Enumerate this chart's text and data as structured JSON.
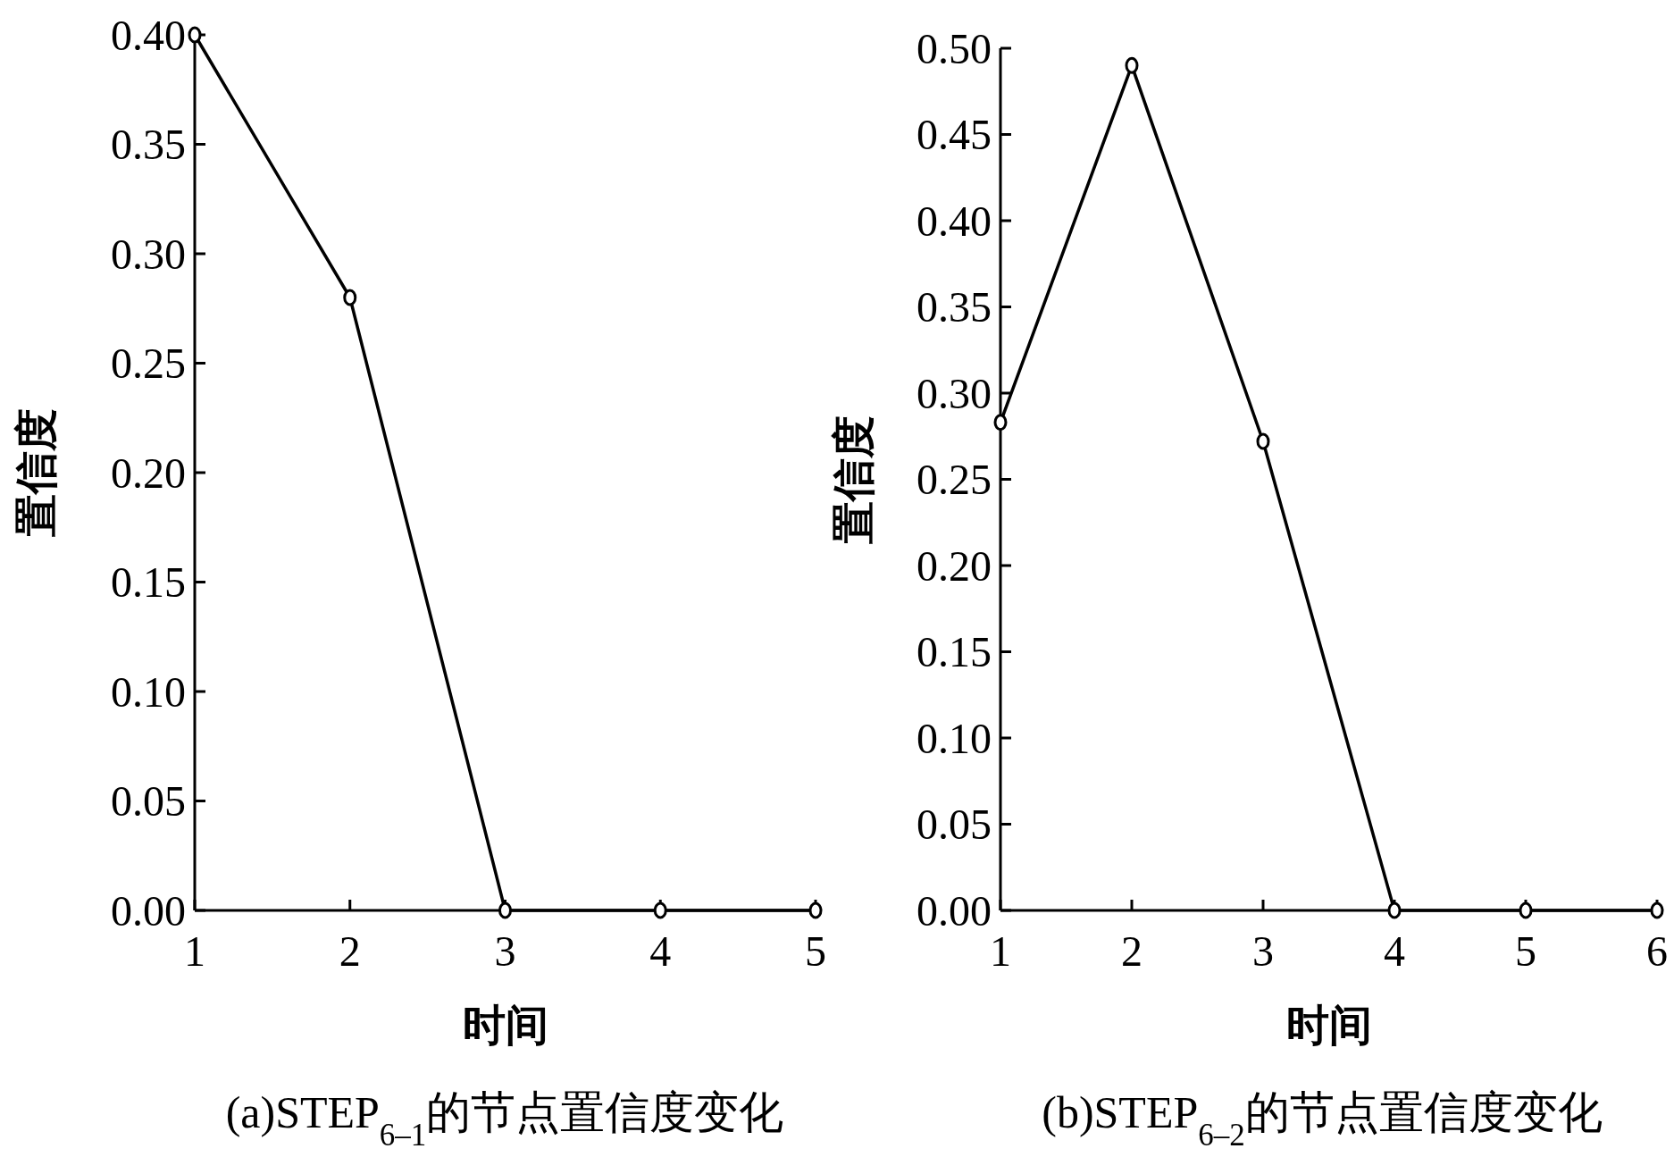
{
  "chart_data": [
    {
      "type": "line",
      "title": "(a)STEP$_{6–1}$的节点置信度变化",
      "xlabel": "时间",
      "ylabel": "置信度",
      "x": [
        1,
        2,
        3,
        4,
        5
      ],
      "series": [
        {
          "color": "#000000",
          "values": [
            0.4,
            0.28,
            0,
            0,
            0
          ]
        }
      ],
      "xlim": [
        1,
        5
      ],
      "xticks": [
        1,
        2,
        3,
        4,
        5
      ],
      "ylim": [
        0,
        0.4
      ],
      "yticks": [
        {
          "value": 0,
          "label": "0.00"
        },
        {
          "value": 0.05,
          "label": "0.05"
        },
        {
          "value": 0.1,
          "label": "0.10"
        },
        {
          "value": 0.15,
          "label": "0.15"
        },
        {
          "value": 0.2,
          "label": "0.20"
        },
        {
          "value": 0.25,
          "label": "0.25"
        },
        {
          "value": 0.3,
          "label": "0.30"
        },
        {
          "value": 0.35,
          "label": "0.35"
        },
        {
          "value": 0.4,
          "label": "0.40"
        }
      ],
      "marker": "circle",
      "line_style": "solid"
    },
    {
      "type": "line",
      "title": "(b)STEP$_{6–2}$的节点置信度变化",
      "xlabel": "时间",
      "ylabel": "置信度",
      "x": [
        1,
        2,
        3,
        4,
        5,
        6
      ],
      "series": [
        {
          "color": "#000000",
          "values": [
            0.283,
            0.49,
            0.272,
            0,
            0,
            0
          ]
        }
      ],
      "xlim": [
        1,
        6
      ],
      "xticks": [
        1,
        2,
        3,
        4,
        5,
        6
      ],
      "ylim": [
        0,
        0.5
      ],
      "yticks": [
        {
          "value": 0,
          "label": "0.00"
        },
        {
          "value": 0.05,
          "label": "0.05"
        },
        {
          "value": 0.1,
          "label": "0.10"
        },
        {
          "value": 0.15,
          "label": "0.15"
        },
        {
          "value": 0.2,
          "label": "0.20"
        },
        {
          "value": 0.25,
          "label": "0.25"
        },
        {
          "value": 0.3,
          "label": "0.30"
        },
        {
          "value": 0.35,
          "label": "0.35"
        },
        {
          "value": 0.4,
          "label": "0.40"
        },
        {
          "value": 0.45,
          "label": "0.45"
        },
        {
          "value": 0.5,
          "label": "0.50"
        }
      ],
      "marker": "circle",
      "line_style": "solid"
    }
  ]
}
